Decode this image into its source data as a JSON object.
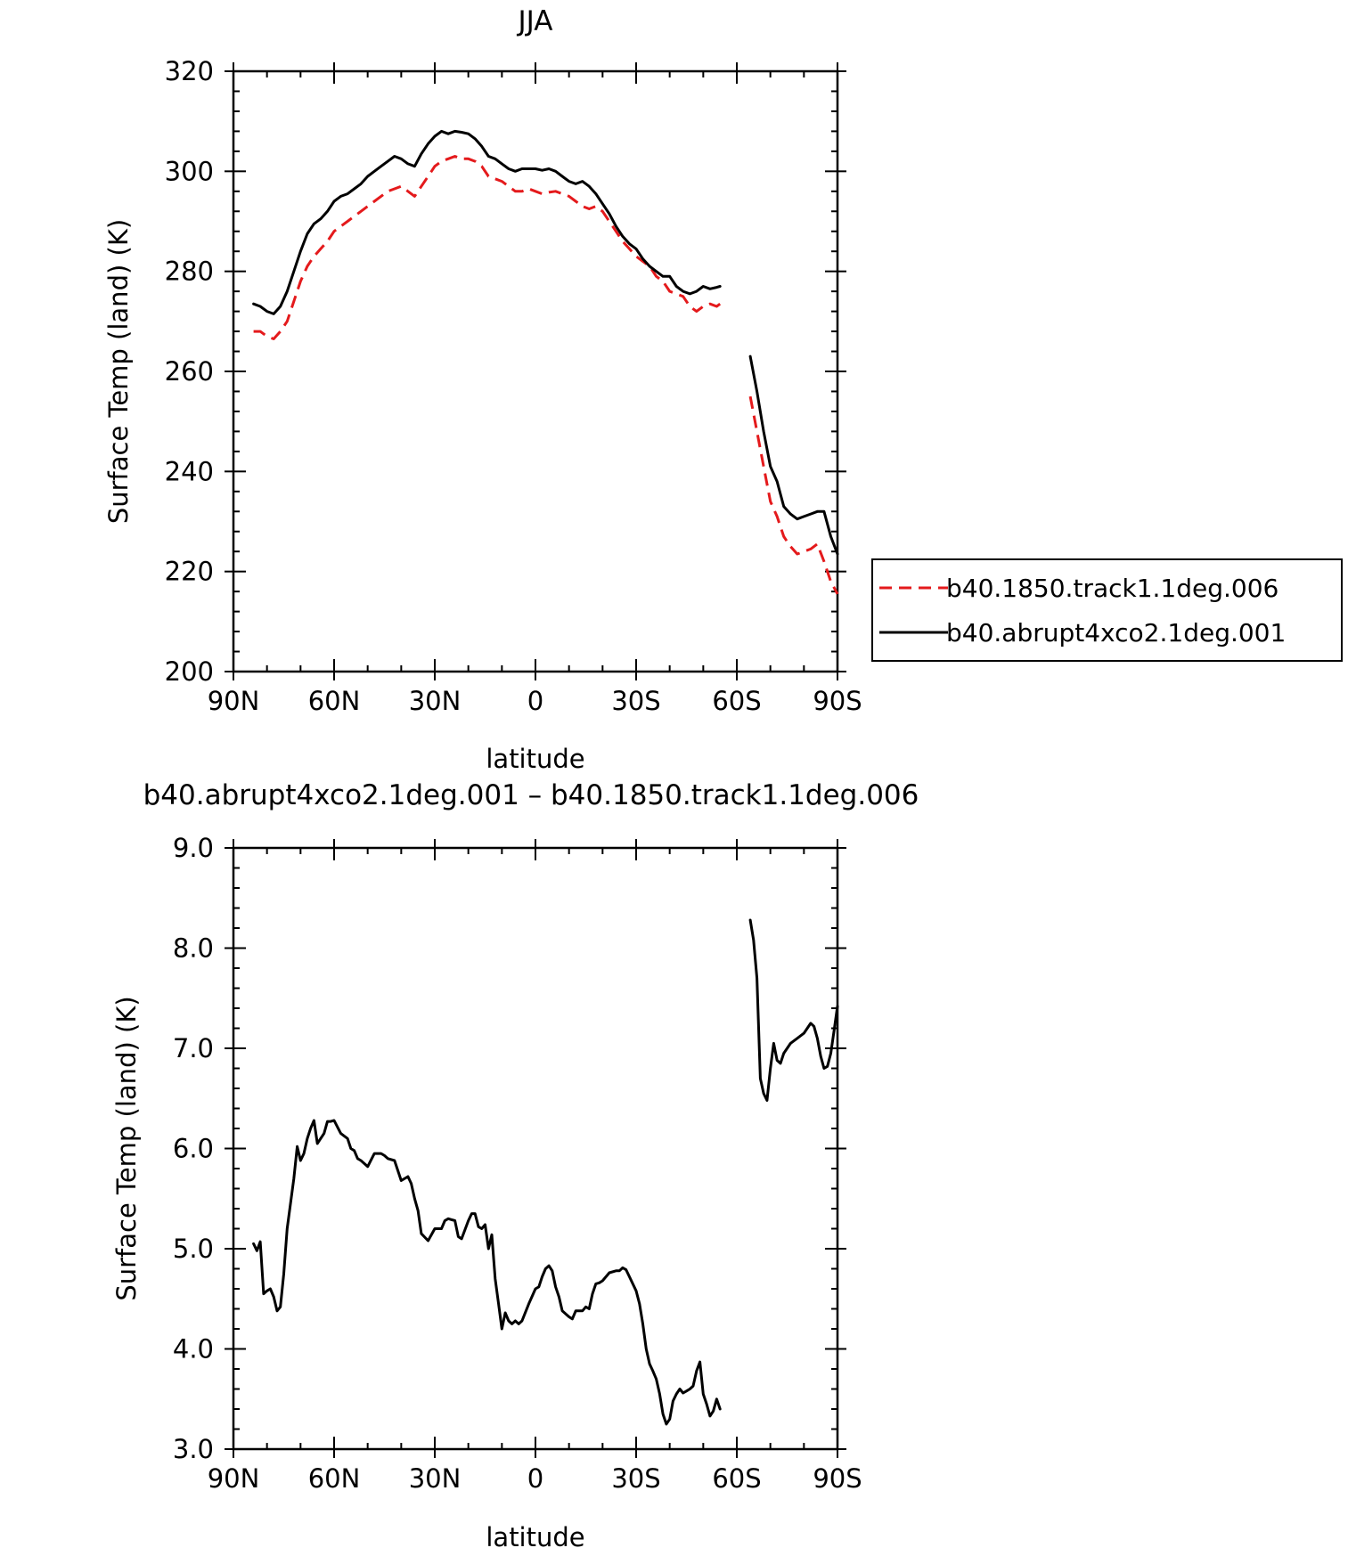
{
  "chart_data": [
    {
      "type": "line",
      "title": "JJA",
      "xlabel": "latitude",
      "ylabel": "Surface Temp (land) (K)",
      "xlim": [
        90,
        -90
      ],
      "ylim": [
        200,
        320
      ],
      "x_ticks": [
        90,
        60,
        30,
        0,
        -30,
        -60,
        -90
      ],
      "x_tick_labels": [
        "90N",
        "60N",
        "30N",
        "0",
        "30S",
        "60S",
        "90S"
      ],
      "y_ticks": [
        200,
        220,
        240,
        260,
        280,
        300,
        320
      ],
      "y_tick_labels": [
        "200",
        "220",
        "240",
        "260",
        "280",
        "300",
        "320"
      ],
      "legend_position": "right",
      "series": [
        {
          "name": "b40.1850.track1.1deg.006",
          "color": "#e41a1c",
          "dash": "dashed",
          "segments": [
            {
              "x": [
                84,
                82,
                80,
                78,
                76,
                74,
                72,
                70,
                68,
                66,
                64,
                62,
                60,
                58,
                56,
                54,
                52,
                50,
                48,
                46,
                44,
                42,
                40,
                38,
                36,
                34,
                32,
                30,
                28,
                26,
                24,
                22,
                20,
                18,
                16,
                14,
                12,
                10,
                8,
                6,
                4,
                2,
                0,
                -2,
                -4,
                -6,
                -8,
                -10,
                -12,
                -14,
                -16,
                -18,
                -20,
                -22,
                -24,
                -26,
                -28,
                -30,
                -32,
                -34,
                -36,
                -38,
                -40,
                -42,
                -44,
                -46,
                -48,
                -50,
                -52,
                -54,
                -55
              ],
              "y": [
                268,
                268,
                267,
                266.5,
                268,
                270,
                274,
                278,
                281,
                283,
                284.5,
                286,
                288,
                289,
                290,
                291,
                292,
                293,
                294,
                295,
                296,
                296.5,
                297,
                296,
                295,
                297,
                299,
                301,
                302,
                302.5,
                303,
                302.5,
                302.5,
                302,
                301,
                299,
                298.5,
                298,
                297,
                296,
                296,
                296.5,
                296,
                295.5,
                295.8,
                296,
                295.5,
                295,
                294,
                293,
                292.5,
                293,
                292,
                290,
                288,
                286,
                284.5,
                283,
                282,
                281,
                279,
                278,
                276,
                275.5,
                275,
                273,
                272,
                273,
                273.5,
                273,
                273.5
              ]
            },
            {
              "x": [
                -64,
                -66,
                -68,
                -70,
                -72,
                -74,
                -76,
                -78,
                -80,
                -82,
                -84,
                -86,
                -88,
                -90
              ],
              "y": [
                255,
                248,
                241,
                234,
                231,
                227,
                225,
                223.5,
                224,
                224.5,
                225.5,
                222,
                218,
                215.5
              ]
            }
          ]
        },
        {
          "name": "b40.abrupt4xco2.1deg.001",
          "color": "#000000",
          "dash": "solid",
          "segments": [
            {
              "x": [
                84,
                82,
                80,
                78,
                76,
                74,
                72,
                70,
                68,
                66,
                64,
                62,
                60,
                58,
                56,
                54,
                52,
                50,
                48,
                46,
                44,
                42,
                40,
                38,
                36,
                34,
                32,
                30,
                28,
                26,
                24,
                22,
                20,
                18,
                16,
                14,
                12,
                10,
                8,
                6,
                4,
                2,
                0,
                -2,
                -4,
                -6,
                -8,
                -10,
                -12,
                -14,
                -16,
                -18,
                -20,
                -22,
                -24,
                -26,
                -28,
                -30,
                -32,
                -34,
                -36,
                -38,
                -40,
                -42,
                -44,
                -46,
                -48,
                -50,
                -52,
                -54,
                -55
              ],
              "y": [
                273.5,
                273,
                272,
                271.5,
                273,
                276,
                280,
                284,
                287.5,
                289.5,
                290.5,
                292,
                294,
                295,
                295.5,
                296.5,
                297.5,
                299,
                300,
                301,
                302,
                303,
                302.5,
                301.5,
                301,
                303.5,
                305.5,
                307,
                308,
                307.5,
                308,
                307.8,
                307.5,
                306.5,
                305,
                303,
                302.5,
                301.5,
                300.5,
                300,
                300.5,
                300.5,
                300.5,
                300.2,
                300.5,
                300,
                299,
                298,
                297.5,
                298,
                297,
                295.5,
                293.5,
                291.5,
                289,
                287,
                285.5,
                284.5,
                282.5,
                281,
                280,
                279,
                279,
                277,
                276,
                275.5,
                276,
                277,
                276.5,
                276.8,
                277
              ]
            },
            {
              "x": [
                -64,
                -66,
                -68,
                -70,
                -72,
                -74,
                -76,
                -78,
                -80,
                -82,
                -84,
                -86,
                -88,
                -90
              ],
              "y": [
                263,
                256,
                248,
                241,
                238,
                233,
                231.5,
                230.5,
                231,
                231.5,
                232,
                232,
                227,
                223.5
              ]
            }
          ]
        }
      ]
    },
    {
      "type": "line",
      "title": "b40.abrupt4xco2.1deg.001 – b40.1850.track1.1deg.006",
      "xlabel": "latitude",
      "ylabel": "Surface Temp (land) (K)",
      "xlim": [
        90,
        -90
      ],
      "ylim": [
        3.0,
        9.0
      ],
      "x_ticks": [
        90,
        60,
        30,
        0,
        -30,
        -60,
        -90
      ],
      "x_tick_labels": [
        "90N",
        "60N",
        "30N",
        "0",
        "30S",
        "60S",
        "90S"
      ],
      "y_ticks": [
        3,
        4,
        5,
        6,
        7,
        8,
        9
      ],
      "y_tick_labels": [
        "3.0",
        "4.0",
        "5.0",
        "6.0",
        "7.0",
        "8.0",
        "9.0"
      ],
      "series": [
        {
          "name": "b40.abrupt4xco2.1deg.001 – b40.1850.track1.1deg.006",
          "color": "#000000",
          "dash": "solid",
          "segments": [
            {
              "x": [
                84,
                83,
                82,
                81,
                80,
                79,
                78,
                77,
                76,
                75,
                74,
                72,
                71,
                70,
                69,
                68,
                67,
                66,
                65,
                64,
                63,
                62,
                61,
                60,
                58,
                56,
                55,
                54,
                53,
                52,
                50,
                48,
                46,
                45,
                44,
                42,
                40,
                38,
                37,
                36,
                35,
                34,
                32,
                30,
                28,
                27,
                26,
                24,
                23,
                22,
                20,
                19,
                18,
                17,
                16,
                15,
                14,
                13,
                12,
                11,
                10,
                9,
                8,
                7,
                6,
                5,
                4,
                2,
                0,
                -1,
                -2,
                -3,
                -4,
                -5,
                -6,
                -7,
                -8,
                -10,
                -11,
                -12,
                -14,
                -15,
                -16,
                -17,
                -18,
                -19,
                -20,
                -22,
                -24,
                -25,
                -26,
                -27,
                -28,
                -30,
                -31,
                -32,
                -33,
                -34,
                -35,
                -36,
                -37,
                -38,
                -39,
                -40,
                -41,
                -42,
                -43,
                -44,
                -45,
                -46,
                -47,
                -48,
                -49,
                -50,
                -51,
                -52,
                -53,
                -54,
                -55
              ],
              "y": [
                5.05,
                4.98,
                5.07,
                4.55,
                4.58,
                4.6,
                4.52,
                4.38,
                4.42,
                4.75,
                5.2,
                5.7,
                6.02,
                5.88,
                5.95,
                6.1,
                6.2,
                6.28,
                6.05,
                6.1,
                6.15,
                6.27,
                6.27,
                6.28,
                6.15,
                6.1,
                6.0,
                5.98,
                5.9,
                5.88,
                5.82,
                5.95,
                5.95,
                5.93,
                5.9,
                5.88,
                5.68,
                5.72,
                5.65,
                5.5,
                5.38,
                5.15,
                5.08,
                5.2,
                5.2,
                5.28,
                5.3,
                5.28,
                5.12,
                5.1,
                5.28,
                5.35,
                5.35,
                5.22,
                5.2,
                5.24,
                5.0,
                5.14,
                4.7,
                4.45,
                4.2,
                4.36,
                4.28,
                4.25,
                4.28,
                4.25,
                4.28,
                4.45,
                4.6,
                4.62,
                4.72,
                4.8,
                4.83,
                4.78,
                4.62,
                4.52,
                4.38,
                4.32,
                4.3,
                4.38,
                4.38,
                4.42,
                4.4,
                4.55,
                4.65,
                4.66,
                4.68,
                4.76,
                4.78,
                4.78,
                4.81,
                4.79,
                4.72,
                4.58,
                4.45,
                4.25,
                4.0,
                3.85,
                3.78,
                3.7,
                3.55,
                3.35,
                3.25,
                3.3,
                3.48,
                3.55,
                3.6,
                3.56,
                3.58,
                3.6,
                3.63,
                3.78,
                3.87,
                3.55,
                3.45,
                3.33,
                3.38,
                3.5,
                3.4
              ]
            },
            {
              "x": [
                -64,
                -65,
                -66,
                -67,
                -68,
                -69,
                -70,
                -71,
                -72,
                -73,
                -74,
                -76,
                -78,
                -80,
                -81,
                -82,
                -83,
                -84,
                -85,
                -86,
                -87,
                -88,
                -89,
                -90
              ],
              "y": [
                8.28,
                8.08,
                7.7,
                6.7,
                6.55,
                6.48,
                6.8,
                7.05,
                6.88,
                6.85,
                6.95,
                7.05,
                7.1,
                7.15,
                7.2,
                7.25,
                7.22,
                7.1,
                6.92,
                6.8,
                6.82,
                6.95,
                7.18,
                7.42
              ]
            }
          ]
        }
      ]
    }
  ]
}
